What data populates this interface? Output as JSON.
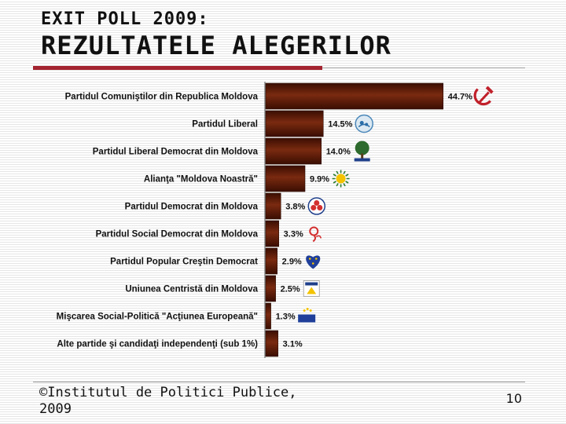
{
  "header": {
    "subtitle": "EXIT POLL 2009:",
    "title": "REZULTATELE ALEGERILOR"
  },
  "footer": {
    "source": "©Institutul de Politici Publice, 2009",
    "page_number": "10"
  },
  "colors": {
    "bar": "#7a2a10",
    "bar_dark": "#3a0e02",
    "accent_red": "#a3232f",
    "rule_gray": "#9a9a9a"
  },
  "chart_data": {
    "type": "bar",
    "orientation": "horizontal",
    "categories": [
      "Partidul Comuniştilor din Republica Moldova",
      "Partidul Liberal",
      "Partidul Liberal Democrat din Moldova",
      "Alianţa \"Moldova Noastră\"",
      "Partidul Democrat din Moldova",
      "Partidul Social Democrat din Moldova",
      "Partidul Popular Creştin Democrat",
      "Uniunea Centristă din Moldova",
      "Mişcarea Social-Politică \"Acţiunea Europeană\"",
      "Alte partide şi candidaţi independenţi (sub 1%)"
    ],
    "values": [
      44.7,
      14.5,
      14.0,
      9.9,
      3.8,
      3.3,
      2.9,
      2.5,
      1.3,
      3.1
    ],
    "value_labels": [
      "44.7%",
      "14.5%",
      "14.0%",
      "9.9%",
      "3.8%",
      "3.3%",
      "2.9%",
      "2.5%",
      "1.3%",
      "3.1%"
    ],
    "logo_icons": [
      "hammer-sickle-icon",
      "pl-logo-icon",
      "pldm-tree-icon",
      "amn-sun-icon",
      "pdm-flower-icon",
      "psdm-rose-icon",
      "ppcd-heart-icon",
      "ucm-logo-icon",
      "mae-logo-icon",
      ""
    ],
    "xlim": [
      0,
      50
    ],
    "grid": false
  }
}
